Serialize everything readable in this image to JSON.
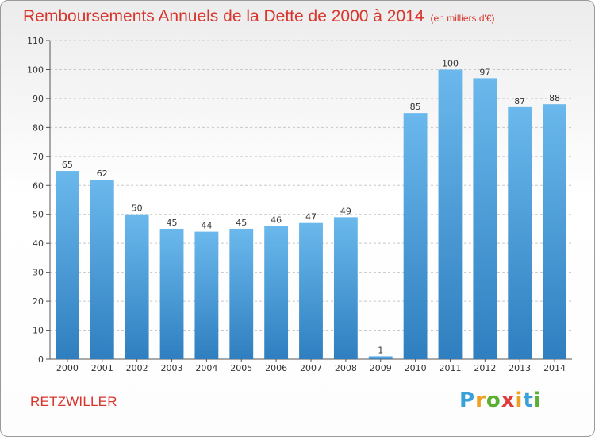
{
  "title": "Remboursements Annuels de la Dette de 2000 à 2014",
  "unit_note": "(en milliers d'€)",
  "commune": "RETZWILLER",
  "logo": {
    "letters": [
      "P",
      "r",
      "o",
      "x",
      "i",
      "t",
      "i"
    ],
    "colors": [
      "#3aa0d8",
      "#f0a020",
      "#5ab030",
      "#e03c3c",
      "#f0a020",
      "#3aa0d8",
      "#5ab030"
    ]
  },
  "colors": {
    "bar_top": "#6ab8ec",
    "bar_bottom": "#2f7fc0",
    "title": "#d8352d"
  },
  "chart_data": {
    "type": "bar",
    "categories": [
      "2000",
      "2001",
      "2002",
      "2003",
      "2004",
      "2005",
      "2006",
      "2007",
      "2008",
      "2009",
      "2010",
      "2011",
      "2012",
      "2013",
      "2014"
    ],
    "values": [
      65,
      62,
      50,
      45,
      44,
      45,
      46,
      47,
      49,
      1,
      85,
      100,
      97,
      87,
      88
    ],
    "yticks": [
      0,
      10,
      20,
      30,
      40,
      50,
      60,
      70,
      80,
      90,
      100,
      110
    ],
    "ylim": [
      0,
      110
    ],
    "grid": true
  }
}
